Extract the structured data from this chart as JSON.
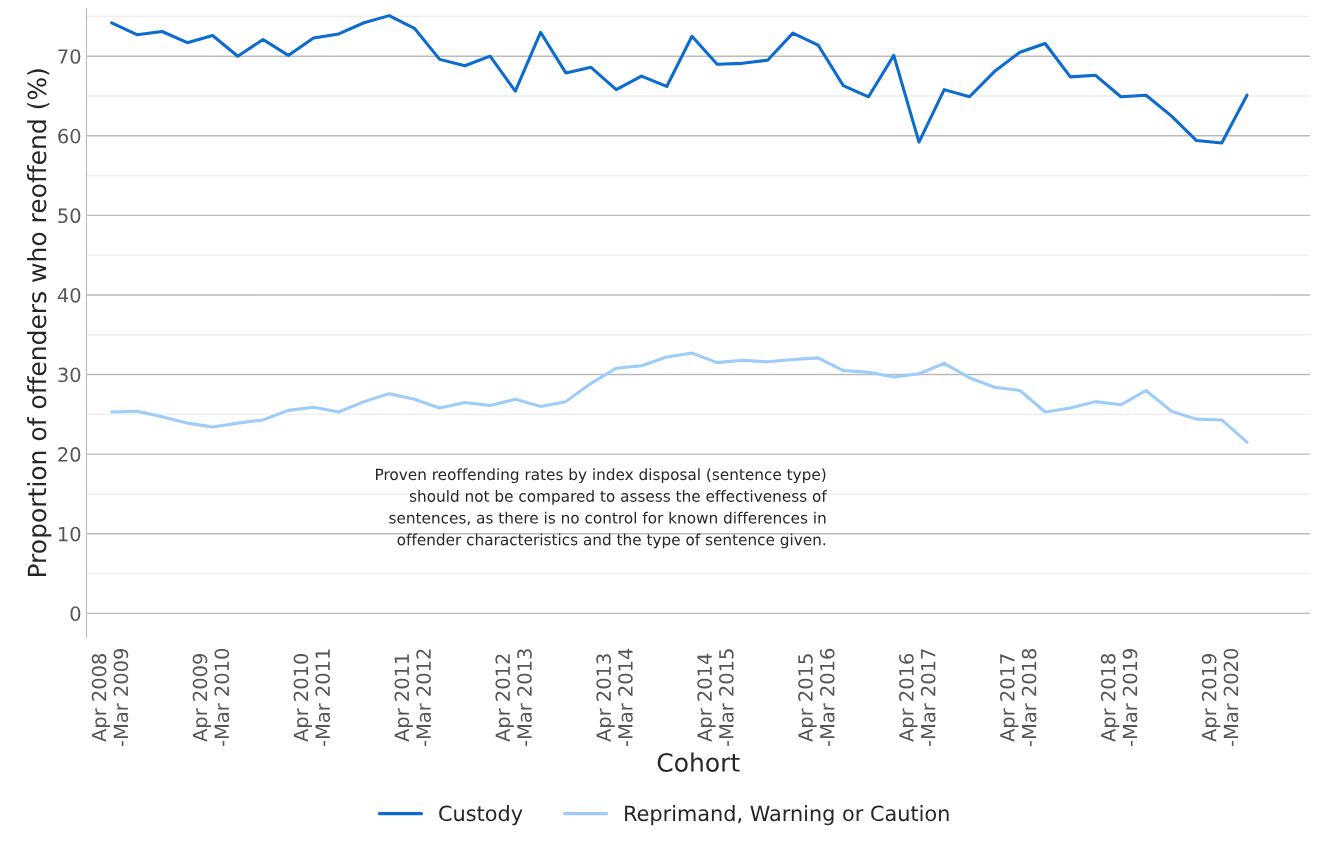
{
  "chart_data": {
    "type": "line",
    "xlabel": "Cohort",
    "ylabel": "Proportion of offenders who reoffend (%)",
    "categories": [
      "Apr 2008\n-Mar 2009",
      null,
      null,
      null,
      "Apr 2009\n-Mar 2010",
      null,
      null,
      null,
      "Apr 2010\n-Mar 2011",
      null,
      null,
      null,
      "Apr 2011\n-Mar 2012",
      null,
      null,
      null,
      "Apr 2012\n-Mar 2013",
      null,
      null,
      null,
      "Apr 2013\n-Mar 2014",
      null,
      null,
      null,
      "Apr 2014\n-Mar 2015",
      null,
      null,
      null,
      "Apr 2015\n-Mar 2016",
      null,
      null,
      null,
      "Apr 2016\n-Mar 2017",
      null,
      null,
      null,
      "Apr 2017\n-Mar 2018",
      null,
      null,
      null,
      "Apr 2018\n-Mar 2019",
      null,
      null,
      null,
      "Apr 2019\n-Mar 2020",
      null
    ],
    "series": [
      {
        "name": "Custody",
        "color": "#0b6bd1",
        "values": [
          74.2,
          72.7,
          73.1,
          71.7,
          72.6,
          70.0,
          72.1,
          70.1,
          72.3,
          72.8,
          74.2,
          75.1,
          73.5,
          69.6,
          68.8,
          70.0,
          65.6,
          73.0,
          67.9,
          68.6,
          65.8,
          67.5,
          66.2,
          72.5,
          69.0,
          69.1,
          69.5,
          72.9,
          71.4,
          66.3,
          64.9,
          70.1,
          59.2,
          65.8,
          64.9,
          68.1,
          70.5,
          71.6,
          67.4,
          67.6,
          64.9,
          65.1,
          62.5,
          59.4,
          59.1,
          65.1
        ]
      },
      {
        "name": "Reprimand, Warning or Caution",
        "color": "#9dccfa",
        "values": [
          25.3,
          25.4,
          24.7,
          23.9,
          23.4,
          23.9,
          24.3,
          25.5,
          25.9,
          25.3,
          26.6,
          27.6,
          26.9,
          25.8,
          26.5,
          26.1,
          26.9,
          26.0,
          26.6,
          28.9,
          30.8,
          31.1,
          32.2,
          32.7,
          31.5,
          31.8,
          31.6,
          31.9,
          32.1,
          30.5,
          30.3,
          29.7,
          30.1,
          31.4,
          29.6,
          28.4,
          28.0,
          25.3,
          25.8,
          26.6,
          26.2,
          28.0,
          25.4,
          24.4,
          24.3,
          21.5
        ]
      }
    ],
    "ylim": [
      -3,
      76
    ],
    "yticks": [
      0,
      {
        "value": 5,
        "label": null
      },
      10,
      {
        "value": 15,
        "label": null
      },
      20,
      {
        "value": 25,
        "label": null
      },
      30,
      {
        "value": 35,
        "label": null
      },
      40,
      {
        "value": 45,
        "label": null
      },
      50,
      {
        "value": 55,
        "label": null
      },
      60,
      {
        "value": 65,
        "label": null
      },
      70,
      {
        "value": 75,
        "label": null
      }
    ],
    "grid": "y",
    "legend": "bottom",
    "line_style": "solid",
    "marker": "none",
    "annotations": [
      "Proven reoffending rates by index disposal (sentence type)\nshould not be compared to assess the effectiveness of\nsentences, as there is no control for known differences in\noffender characteristics and the type of sentence given."
    ]
  }
}
